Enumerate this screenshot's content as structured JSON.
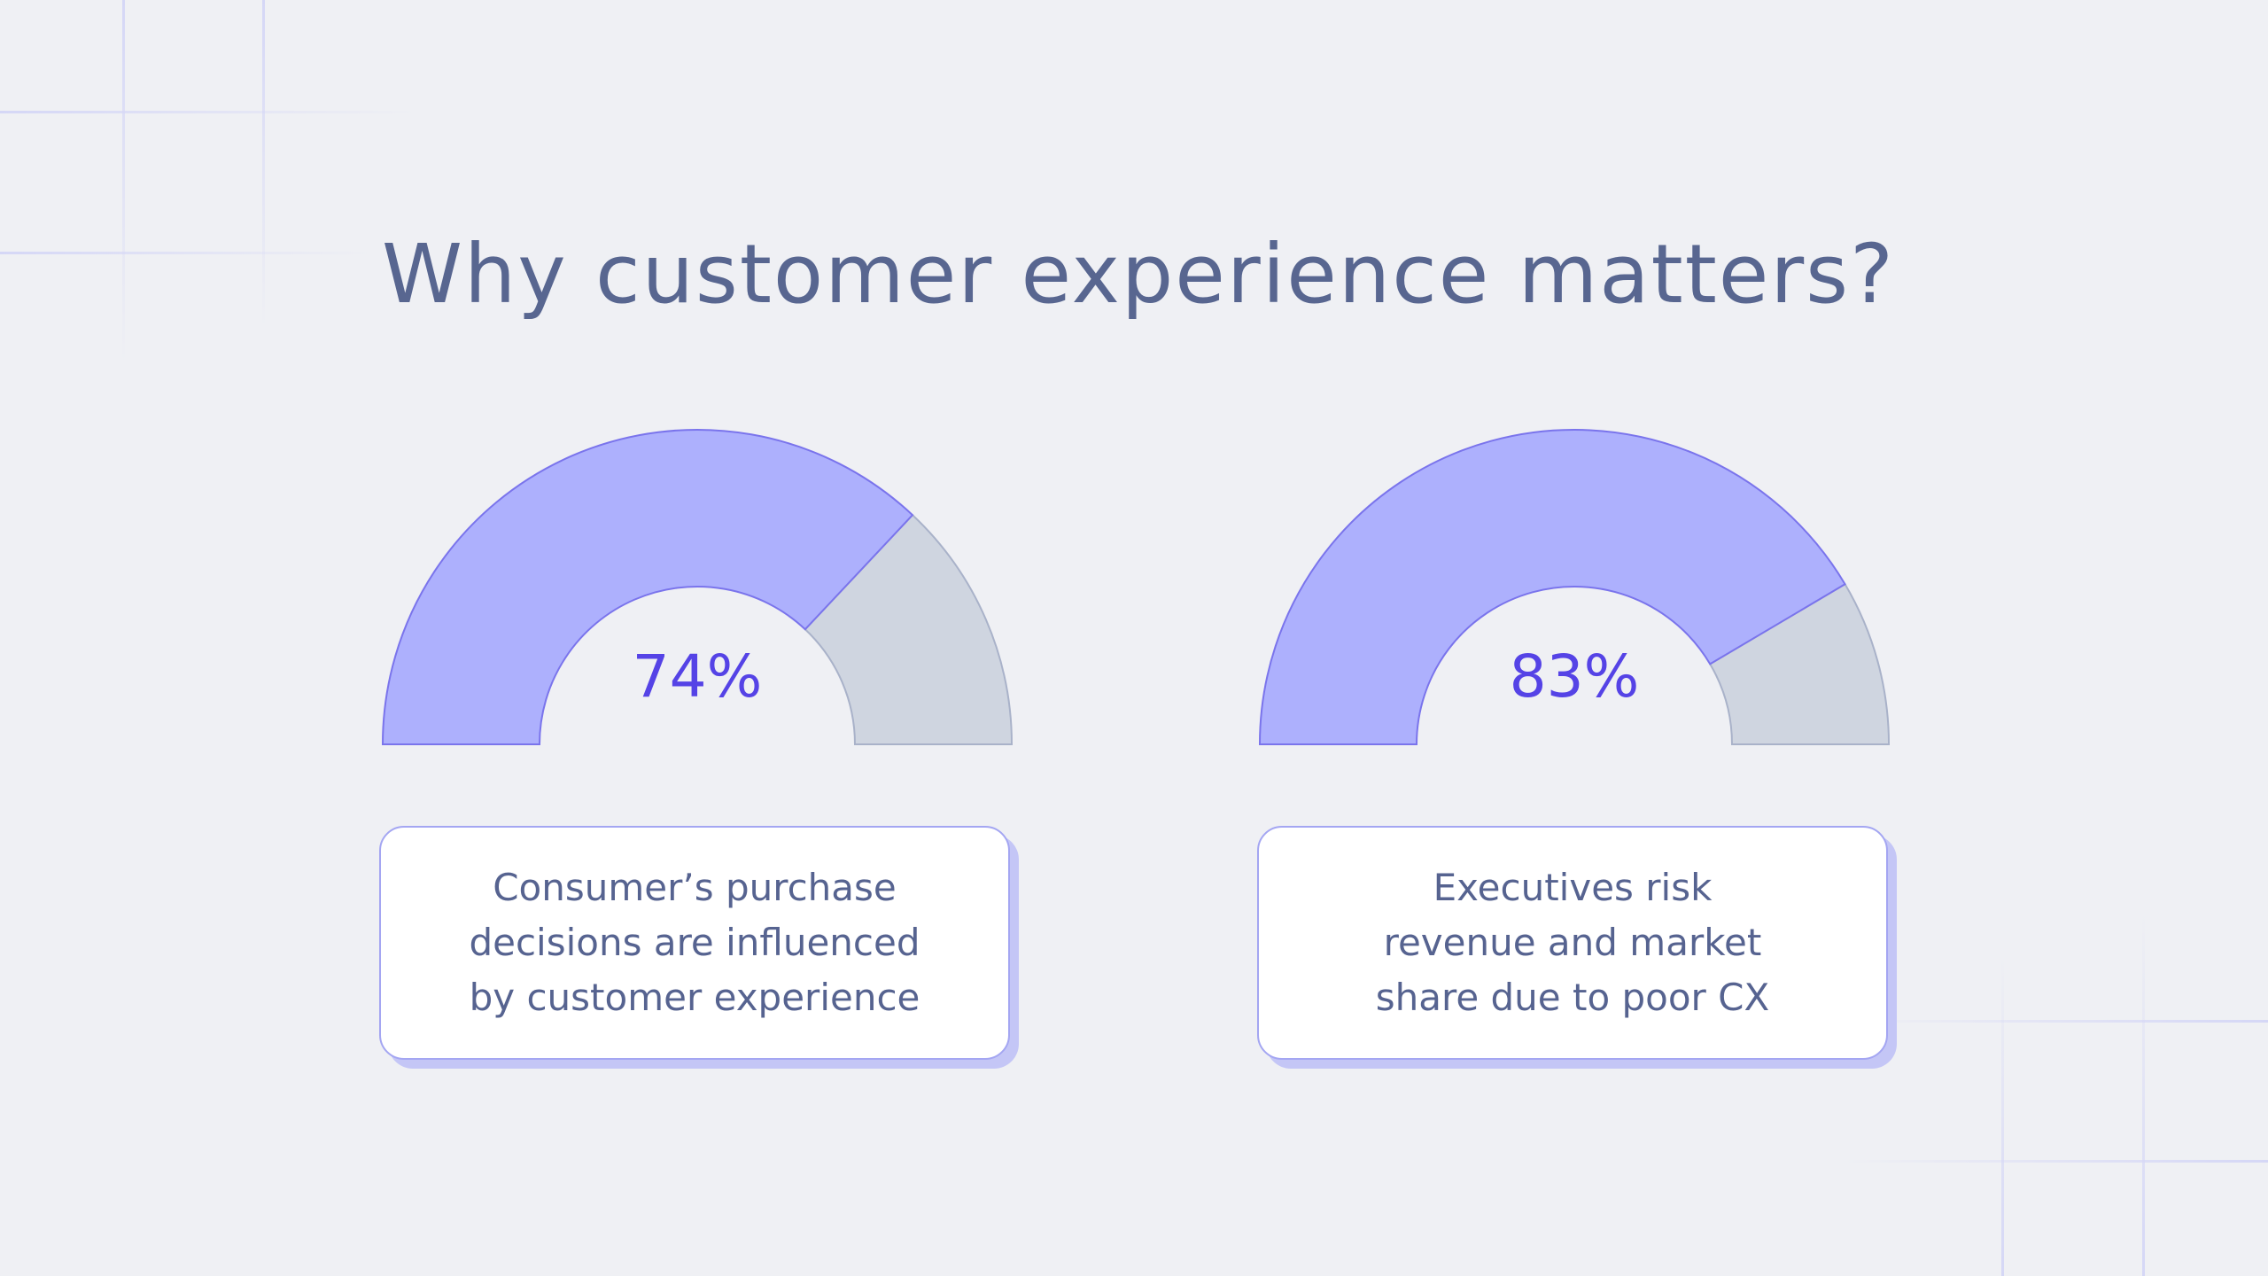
{
  "title": "Why customer experience matters?",
  "colors": {
    "background": "#eff0f4",
    "filled": "#adb0fd",
    "filled_stroke": "#7a74ec",
    "remainder": "#cfd5e0",
    "remainder_stroke": "#a9b2c9",
    "value_text": "#5543e6",
    "text": "#566390",
    "grid_lines": "#d7d9f3"
  },
  "chart_data": [
    {
      "type": "gauge",
      "value": 74,
      "max": 100,
      "label": "74%",
      "caption": "Consumer’s purchase\ndecisions are influenced\nby customer experience"
    },
    {
      "type": "gauge",
      "value": 83,
      "max": 100,
      "label": "83%",
      "caption": "Executives risk\nrevenue and market\nshare due to poor CX"
    }
  ]
}
